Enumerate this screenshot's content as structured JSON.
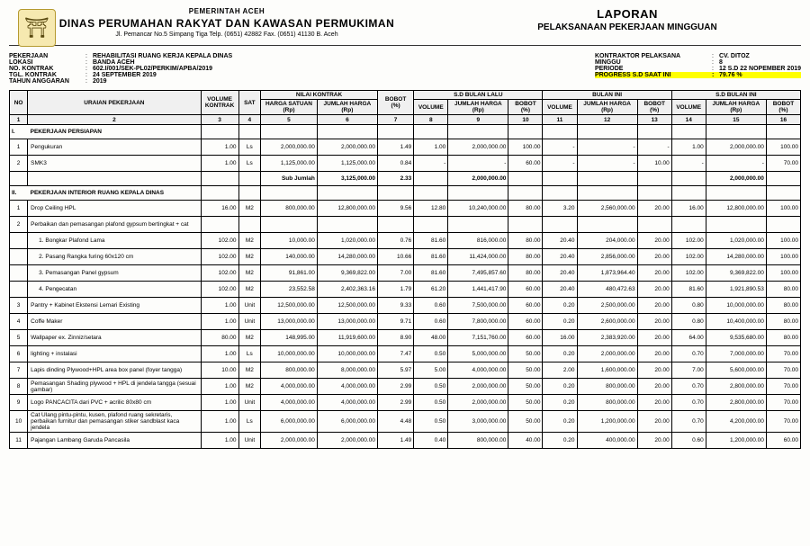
{
  "header": {
    "gov": "PEMERINTAH ACEH",
    "dinas": "DINAS PERUMAHAN RAKYAT DAN KAWASAN PERMUKIMAN",
    "addr": "Jl. Pemancar No.5 Simpang Tiga Telp. (0651) 42882 Fax. (0651) 41130 B. Aceh",
    "laporan": "LAPORAN",
    "laporan_sub": "PELAKSANAAN PEKERJAAN MINGGUAN"
  },
  "meta_left": [
    {
      "lbl": "PEKERJAAN",
      "val": "REHABILITASI RUANG KERJA KEPALA DINAS"
    },
    {
      "lbl": "LOKASI",
      "val": "BANDA ACEH"
    },
    {
      "lbl": "NO. KONTRAK",
      "val": "602.I/001/SEK-PL02/PERKIM/APBA/2019"
    },
    {
      "lbl": "TGL. KONTRAK",
      "val": "24 SEPTEMBER 2019"
    },
    {
      "lbl": "TAHUN ANGGARAN",
      "val": "2019"
    }
  ],
  "meta_right": [
    {
      "lbl": "KONTRAKTOR PELAKSANA",
      "val": "CV. DITOZ",
      "hl": false
    },
    {
      "lbl": "MINGGU",
      "val": "8",
      "hl": false
    },
    {
      "lbl": "PERIODE",
      "val": "12 S.D 22 NOPEMBER 2019",
      "hl": false
    },
    {
      "lbl": "PROGRESS S.D SAAT INI",
      "val": "79.76   %",
      "hl": true
    }
  ],
  "thead_groups": [
    {
      "label": "NO",
      "rs": 2,
      "cs": 1
    },
    {
      "label": "URAIAN PEKERJAAN",
      "rs": 2,
      "cs": 1
    },
    {
      "label": "VOLUME KONTRAK",
      "rs": 2,
      "cs": 1
    },
    {
      "label": "SAT",
      "rs": 2,
      "cs": 1
    },
    {
      "label": "NILAI KONTRAK",
      "rs": 1,
      "cs": 2
    },
    {
      "label": "BOBOT (%)",
      "rs": 2,
      "cs": 1
    },
    {
      "label": "S.D BULAN LALU",
      "rs": 1,
      "cs": 3
    },
    {
      "label": "BULAN INI",
      "rs": 1,
      "cs": 3
    },
    {
      "label": "S.D BULAN INI",
      "rs": 1,
      "cs": 3
    }
  ],
  "thead_sub": [
    "HARGA SATUAN (Rp)",
    "JUMLAH HARGA (Rp)",
    "VOLUME",
    "JUMLAH HARGA (Rp)",
    "BOBOT (%)",
    "VOLUME",
    "JUMLAH HARGA (Rp)",
    "BOBOT (%)",
    "VOLUME",
    "JUMLAH HARGA (Rp)",
    "BOBOT (%)"
  ],
  "colnums": [
    "1",
    "2",
    "3",
    "4",
    "5",
    "6",
    "7",
    "8",
    "9",
    "10",
    "11",
    "12",
    "13",
    "14",
    "15",
    "16"
  ],
  "sections": [
    {
      "title": "I.   PEKERJAAN PERSIAPAN",
      "rows": [
        {
          "no": "1",
          "u": "Pengukuran",
          "vk": "1.00",
          "sat": "Ls",
          "hs": "2,000,000.00",
          "jh": "2,000,000.00",
          "b": "1.49",
          "v1": "1.00",
          "jh1": "2,000,000.00",
          "bb1": "100.00",
          "v2": "-",
          "jh2": "-",
          "bb2": "-",
          "v3": "1.00",
          "jh3": "2,000,000.00",
          "bb3": "100.00"
        },
        {
          "no": "2",
          "u": "SMK3",
          "vk": "1.00",
          "sat": "Ls",
          "hs": "1,125,000.00",
          "jh": "1,125,000.00",
          "b": "0.84",
          "v1": "-",
          "jh1": "-",
          "bb1": "60.00",
          "v2": "-",
          "jh2": "-",
          "bb2": "10.00",
          "v3": "-",
          "jh3": "-",
          "bb3": "70.00"
        }
      ],
      "sub": {
        "label": "Sub Jumlah",
        "jh": "3,125,000.00",
        "b": "2.33",
        "jh1": "2,000,000.00",
        "jh3": "2,000,000.00"
      }
    },
    {
      "title": "II.  PEKERJAAN INTERIOR RUANG KEPALA DINAS",
      "rows": [
        {
          "no": "1",
          "u": "Drop Ceiling HPL",
          "vk": "16.00",
          "sat": "M2",
          "hs": "800,000.00",
          "jh": "12,800,000.00",
          "b": "9.56",
          "v1": "12.80",
          "jh1": "10,240,000.00",
          "bb1": "80.00",
          "v2": "3.20",
          "jh2": "2,560,000.00",
          "bb2": "20.00",
          "v3": "16.00",
          "jh3": "12,800,000.00",
          "bb3": "100.00"
        },
        {
          "no": "2",
          "u": "Perbaikan dan pemasangan plafond gypsum bertingkat + cat",
          "vk": "",
          "sat": "",
          "hs": "",
          "jh": "",
          "b": "",
          "v1": "",
          "jh1": "",
          "bb1": "",
          "v2": "",
          "jh2": "",
          "bb2": "",
          "v3": "",
          "jh3": "",
          "bb3": ""
        },
        {
          "no": "",
          "u": "1. Bongkar Plafond Lama",
          "ind": true,
          "vk": "102.00",
          "sat": "M2",
          "hs": "10,000.00",
          "jh": "1,020,000.00",
          "b": "0.76",
          "v1": "81.60",
          "jh1": "816,000.00",
          "bb1": "80.00",
          "v2": "20.40",
          "jh2": "204,000.00",
          "bb2": "20.00",
          "v3": "102.00",
          "jh3": "1,020,000.00",
          "bb3": "100.00"
        },
        {
          "no": "",
          "u": "2. Pasang Rangka furing 60x120 cm",
          "ind": true,
          "vk": "102.00",
          "sat": "M2",
          "hs": "140,000.00",
          "jh": "14,280,000.00",
          "b": "10.66",
          "v1": "81.60",
          "jh1": "11,424,000.00",
          "bb1": "80.00",
          "v2": "20.40",
          "jh2": "2,856,000.00",
          "bb2": "20.00",
          "v3": "102.00",
          "jh3": "14,280,000.00",
          "bb3": "100.00"
        },
        {
          "no": "",
          "u": "3. Pemasangan Panel gypsum",
          "ind": true,
          "vk": "102.00",
          "sat": "M2",
          "hs": "91,861.00",
          "jh": "9,369,822.00",
          "b": "7.00",
          "v1": "81.60",
          "jh1": "7,495,857.60",
          "bb1": "80.00",
          "v2": "20.40",
          "jh2": "1,873,964.40",
          "bb2": "20.00",
          "v3": "102.00",
          "jh3": "9,369,822.00",
          "bb3": "100.00"
        },
        {
          "no": "",
          "u": "4. Pengecatan",
          "ind": true,
          "vk": "102.00",
          "sat": "M2",
          "hs": "23,552.58",
          "jh": "2,402,363.16",
          "b": "1.79",
          "v1": "61.20",
          "jh1": "1,441,417.90",
          "bb1": "60.00",
          "v2": "20.40",
          "jh2": "480,472.63",
          "bb2": "20.00",
          "v3": "81.60",
          "jh3": "1,921,890.53",
          "bb3": "80.00"
        },
        {
          "no": "3",
          "u": "Pantry + Kabinet Ekstensi Lemari Existing",
          "vk": "1.00",
          "sat": "Unit",
          "hs": "12,500,000.00",
          "jh": "12,500,000.00",
          "b": "9.33",
          "v1": "0.60",
          "jh1": "7,500,000.00",
          "bb1": "60.00",
          "v2": "0.20",
          "jh2": "2,500,000.00",
          "bb2": "20.00",
          "v3": "0.80",
          "jh3": "10,000,000.00",
          "bb3": "80.00"
        },
        {
          "no": "4",
          "u": "Coffe Maker",
          "vk": "1.00",
          "sat": "Unit",
          "hs": "13,000,000.00",
          "jh": "13,000,000.00",
          "b": "9.71",
          "v1": "0.60",
          "jh1": "7,800,000.00",
          "bb1": "60.00",
          "v2": "0.20",
          "jh2": "2,600,000.00",
          "bb2": "20.00",
          "v3": "0.80",
          "jh3": "10,400,000.00",
          "bb3": "80.00"
        },
        {
          "no": "5",
          "u": "Wallpaper ex. Zinniz/setara",
          "vk": "80.00",
          "sat": "M2",
          "hs": "148,995.00",
          "jh": "11,919,600.00",
          "b": "8.90",
          "v1": "48.00",
          "jh1": "7,151,760.00",
          "bb1": "60.00",
          "v2": "16.00",
          "jh2": "2,383,920.00",
          "bb2": "20.00",
          "v3": "64.00",
          "jh3": "9,535,680.00",
          "bb3": "80.00"
        },
        {
          "no": "6",
          "u": "lighting + instalasi",
          "vk": "1.00",
          "sat": "Ls",
          "hs": "10,000,000.00",
          "jh": "10,000,000.00",
          "b": "7.47",
          "v1": "0.50",
          "jh1": "5,000,000.00",
          "bb1": "50.00",
          "v2": "0.20",
          "jh2": "2,000,000.00",
          "bb2": "20.00",
          "v3": "0.70",
          "jh3": "7,000,000.00",
          "bb3": "70.00"
        },
        {
          "no": "7",
          "u": "Lapis dinding Plywood+HPL area box panel (foyer tangga)",
          "vk": "10.00",
          "sat": "M2",
          "hs": "800,000.00",
          "jh": "8,000,000.00",
          "b": "5.97",
          "v1": "5.00",
          "jh1": "4,000,000.00",
          "bb1": "50.00",
          "v2": "2.00",
          "jh2": "1,600,000.00",
          "bb2": "20.00",
          "v3": "7.00",
          "jh3": "5,600,000.00",
          "bb3": "70.00"
        },
        {
          "no": "8",
          "u": "Pemasangan Shading plywood + HPL di jendela tangga (sesuai gambar)",
          "vk": "1.00",
          "sat": "M2",
          "hs": "4,000,000.00",
          "jh": "4,000,000.00",
          "b": "2.99",
          "v1": "0.50",
          "jh1": "2,000,000.00",
          "bb1": "50.00",
          "v2": "0.20",
          "jh2": "800,000.00",
          "bb2": "20.00",
          "v3": "0.70",
          "jh3": "2,800,000.00",
          "bb3": "70.00"
        },
        {
          "no": "9",
          "u": "Logo  PANCACITA dari PVC + acrilic 80x80 cm",
          "vk": "1.00",
          "sat": "Unit",
          "hs": "4,000,000.00",
          "jh": "4,000,000.00",
          "b": "2.99",
          "v1": "0.50",
          "jh1": "2,000,000.00",
          "bb1": "50.00",
          "v2": "0.20",
          "jh2": "800,000.00",
          "bb2": "20.00",
          "v3": "0.70",
          "jh3": "2,800,000.00",
          "bb3": "70.00"
        },
        {
          "no": "10",
          "u": "Cat Ulang pintu-pintu, kusen, plafond ruang sekretaris, perbaikan furnitur dan pemasangan stiker sandblast kaca jendela",
          "vk": "1.00",
          "sat": "Ls",
          "hs": "6,000,000.00",
          "jh": "6,000,000.00",
          "b": "4.48",
          "v1": "0.50",
          "jh1": "3,000,000.00",
          "bb1": "50.00",
          "v2": "0.20",
          "jh2": "1,200,000.00",
          "bb2": "20.00",
          "v3": "0.70",
          "jh3": "4,200,000.00",
          "bb3": "70.00"
        },
        {
          "no": "11",
          "u": "Pajangan Lambang Garuda Pancasila",
          "vk": "1.00",
          "sat": "Unit",
          "hs": "2,000,000.00",
          "jh": "2,000,000.00",
          "b": "1.49",
          "v1": "0.40",
          "jh1": "800,000.00",
          "bb1": "40.00",
          "v2": "0.20",
          "jh2": "400,000.00",
          "bb2": "20.00",
          "v3": "0.60",
          "jh3": "1,200,000.00",
          "bb3": "60.00"
        }
      ]
    }
  ]
}
